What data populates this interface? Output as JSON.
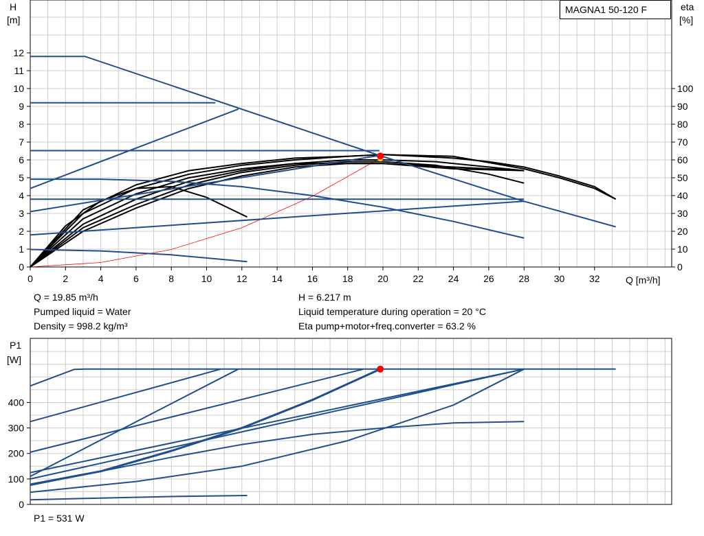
{
  "model": "MAGNA1 50-120 F",
  "info_upper": {
    "q": "Q = 19.85 m³/h",
    "liquid": "Pumped liquid = Water",
    "density": "Density = 998.2 kg/m³",
    "h": "H = 6.217 m",
    "temp": "Liquid temperature during operation = 20 °C",
    "eta": "Eta pump+motor+freq.converter = 63.2 %"
  },
  "info_lower": {
    "p1": "P1 = 531 W"
  },
  "colors": {
    "curve_blue": "#1f4e8c",
    "eta_black": "#000000",
    "system_red": "#ff0000",
    "grid": "#cccccc",
    "operating_point": "#ff0000"
  },
  "chart_data": [
    {
      "type": "line",
      "name": "head-eta",
      "y_label_top": "H",
      "y_unit": "[m]",
      "y2_label_top": "eta",
      "y2_unit": "[%]",
      "x_unit_label": "Q [m³/h]",
      "xlim": [
        0,
        36
      ],
      "ylim": [
        0,
        14.0
      ],
      "y2lim": [
        0,
        140
      ],
      "x_ticks": [
        0,
        2,
        4,
        6,
        8,
        10,
        12,
        14,
        16,
        18,
        20,
        22,
        24,
        26,
        28,
        30,
        32
      ],
      "y_ticks": [
        0,
        1,
        2,
        3,
        4,
        5,
        6,
        7,
        8,
        9,
        10,
        11,
        12
      ],
      "y2_ticks": [
        0,
        10,
        20,
        30,
        40,
        50,
        60,
        70,
        80,
        90,
        100
      ],
      "grid": true,
      "head_curves": [
        {
          "x": [
            0,
            3.1,
            19.8,
            28.0,
            33.2
          ],
          "y": [
            11.8,
            11.8,
            6.25,
            3.68,
            2.25
          ]
        },
        {
          "x": [
            0,
            10.5
          ],
          "y": [
            9.2,
            9.2
          ]
        },
        {
          "x": [
            0,
            19.8
          ],
          "y": [
            6.52,
            6.52
          ]
        },
        {
          "x": [
            0,
            4,
            8,
            12,
            16,
            20,
            24,
            28
          ],
          "y": [
            4.92,
            4.92,
            4.8,
            4.5,
            4.0,
            3.35,
            2.55,
            1.62
          ]
        },
        {
          "x": [
            0,
            28.0
          ],
          "y": [
            3.8,
            3.8
          ]
        },
        {
          "x": [
            0,
            4,
            8,
            12.3
          ],
          "y": [
            0.98,
            0.9,
            0.68,
            0.3
          ]
        },
        {
          "x": [
            0,
            11.8
          ],
          "y": [
            4.4,
            8.85
          ]
        },
        {
          "x": [
            0,
            19.8
          ],
          "y": [
            3.1,
            6.25
          ]
        },
        {
          "x": [
            0,
            28.0
          ],
          "y": [
            1.8,
            3.68
          ]
        }
      ],
      "eta_curves": [
        {
          "x": [
            0,
            2,
            4,
            6,
            8,
            10,
            12.3
          ],
          "y": [
            0,
            23,
            37,
            44,
            45,
            39,
            28
          ]
        },
        {
          "x": [
            0,
            3,
            6,
            9,
            12,
            15,
            18,
            20,
            22,
            24,
            26,
            28,
            30,
            32,
            33.2
          ],
          "y": [
            0,
            30,
            44,
            52,
            57,
            60,
            62,
            63,
            62,
            61,
            59,
            56,
            51,
            45,
            38
          ]
        },
        {
          "x": [
            0,
            3,
            6,
            9,
            12,
            15,
            18,
            20,
            23,
            26,
            28
          ],
          "y": [
            0,
            24,
            38,
            48,
            54,
            58,
            60,
            60,
            59,
            56,
            54
          ]
        },
        {
          "x": [
            0,
            3,
            6,
            9,
            12,
            15,
            18,
            20,
            23,
            26,
            28
          ],
          "y": [
            0,
            22,
            35,
            46,
            53,
            57,
            59,
            59,
            57,
            52,
            47
          ]
        },
        {
          "x": [
            0,
            3,
            6,
            9,
            12,
            15,
            18,
            20,
            24,
            28
          ],
          "y": [
            0,
            27,
            41,
            50,
            55,
            58,
            58,
            58,
            56,
            54
          ]
        },
        {
          "x": [
            0,
            3,
            6,
            9,
            12,
            15,
            18,
            20,
            24,
            28
          ],
          "y": [
            0,
            20,
            33,
            44,
            51,
            56,
            58,
            58,
            55,
            54
          ]
        },
        {
          "x": [
            0,
            3,
            6,
            9,
            12,
            15,
            18,
            20,
            24,
            28,
            30,
            32,
            33.2
          ],
          "y": [
            0,
            32,
            46,
            54,
            58,
            61,
            62,
            63,
            62,
            55,
            50,
            44,
            38
          ]
        }
      ],
      "system_curve": {
        "x": [
          0,
          4,
          8,
          12,
          16,
          19.85
        ],
        "y": [
          0,
          0.25,
          0.98,
          2.2,
          3.96,
          6.1
        ]
      },
      "operating_point": {
        "x": 19.85,
        "y": 6.217
      }
    },
    {
      "type": "line",
      "name": "power",
      "y_label_top": "P1",
      "y_unit": "[W]",
      "xlim": [
        0,
        36
      ],
      "ylim": [
        0,
        540
      ],
      "y_ticks": [
        0,
        100,
        200,
        300,
        400
      ],
      "grid": true,
      "power_curves": [
        {
          "x": [
            0,
            2.5,
            3.1,
            33.2
          ],
          "y": [
            465,
            530,
            531,
            531
          ]
        },
        {
          "x": [
            0,
            10.8
          ],
          "y": [
            325,
            531
          ]
        },
        {
          "x": [
            0,
            11.8
          ],
          "y": [
            110,
            531
          ]
        },
        {
          "x": [
            0,
            4,
            8,
            12,
            16,
            19.85
          ],
          "y": [
            78,
            130,
            210,
            300,
            410,
            531
          ]
        },
        {
          "x": [
            0,
            18.9
          ],
          "y": [
            205,
            531
          ]
        },
        {
          "x": [
            0,
            28.0
          ],
          "y": [
            125,
            531
          ]
        },
        {
          "x": [
            0,
            28.0
          ],
          "y": [
            100,
            531
          ]
        },
        {
          "x": [
            0,
            6,
            12,
            18,
            24,
            28
          ],
          "y": [
            48,
            90,
            150,
            250,
            390,
            531
          ]
        },
        {
          "x": [
            0,
            4,
            8,
            12,
            16,
            20,
            24,
            28
          ],
          "y": [
            75,
            130,
            185,
            235,
            275,
            300,
            320,
            325
          ]
        },
        {
          "x": [
            0,
            4,
            8,
            12.3
          ],
          "y": [
            18,
            25,
            31,
            35
          ]
        }
      ],
      "operating_point": {
        "x": 19.85,
        "y": 531
      }
    }
  ]
}
